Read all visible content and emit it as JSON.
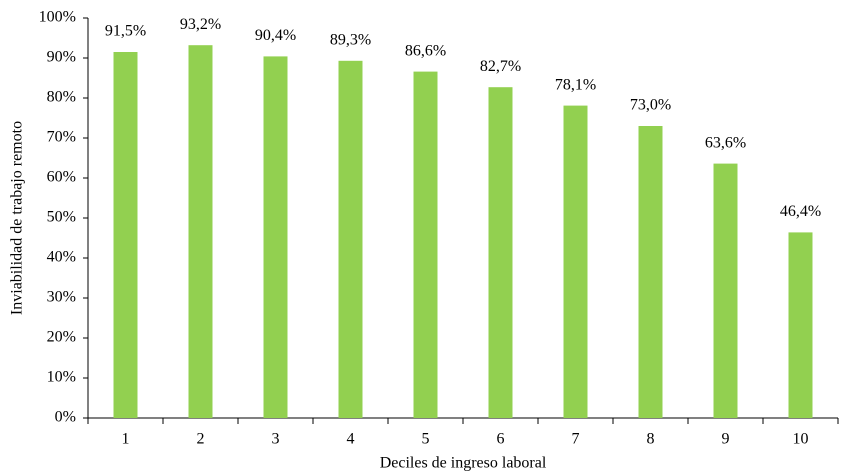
{
  "chart_data": {
    "type": "bar",
    "x_label": "Deciles de ingreso laboral",
    "y_label": "Inviabilidad de trabajo remoto",
    "categories": [
      "1",
      "2",
      "3",
      "4",
      "5",
      "6",
      "7",
      "8",
      "9",
      "10"
    ],
    "values": [
      91.5,
      93.2,
      90.4,
      89.3,
      86.6,
      82.7,
      78.1,
      73.0,
      63.6,
      46.4
    ],
    "value_labels": [
      "91,5%",
      "93,2%",
      "90,4%",
      "89,3%",
      "86,6%",
      "82,7%",
      "78,1%",
      "73,0%",
      "63,6%",
      "46,4%"
    ],
    "color": "#92d050",
    "ylim": [
      0,
      100
    ],
    "yticks": [
      {
        "value": 0,
        "label": "0%"
      },
      {
        "value": 10,
        "label": "10%"
      },
      {
        "value": 20,
        "label": "20%"
      },
      {
        "value": 30,
        "label": "30%"
      },
      {
        "value": 40,
        "label": "40%"
      },
      {
        "value": 50,
        "label": "50%"
      },
      {
        "value": 60,
        "label": "60%"
      },
      {
        "value": 70,
        "label": "70%"
      },
      {
        "value": 80,
        "label": "80%"
      },
      {
        "value": 90,
        "label": "90%"
      },
      {
        "value": 100,
        "label": "100%"
      }
    ],
    "grid": false
  }
}
